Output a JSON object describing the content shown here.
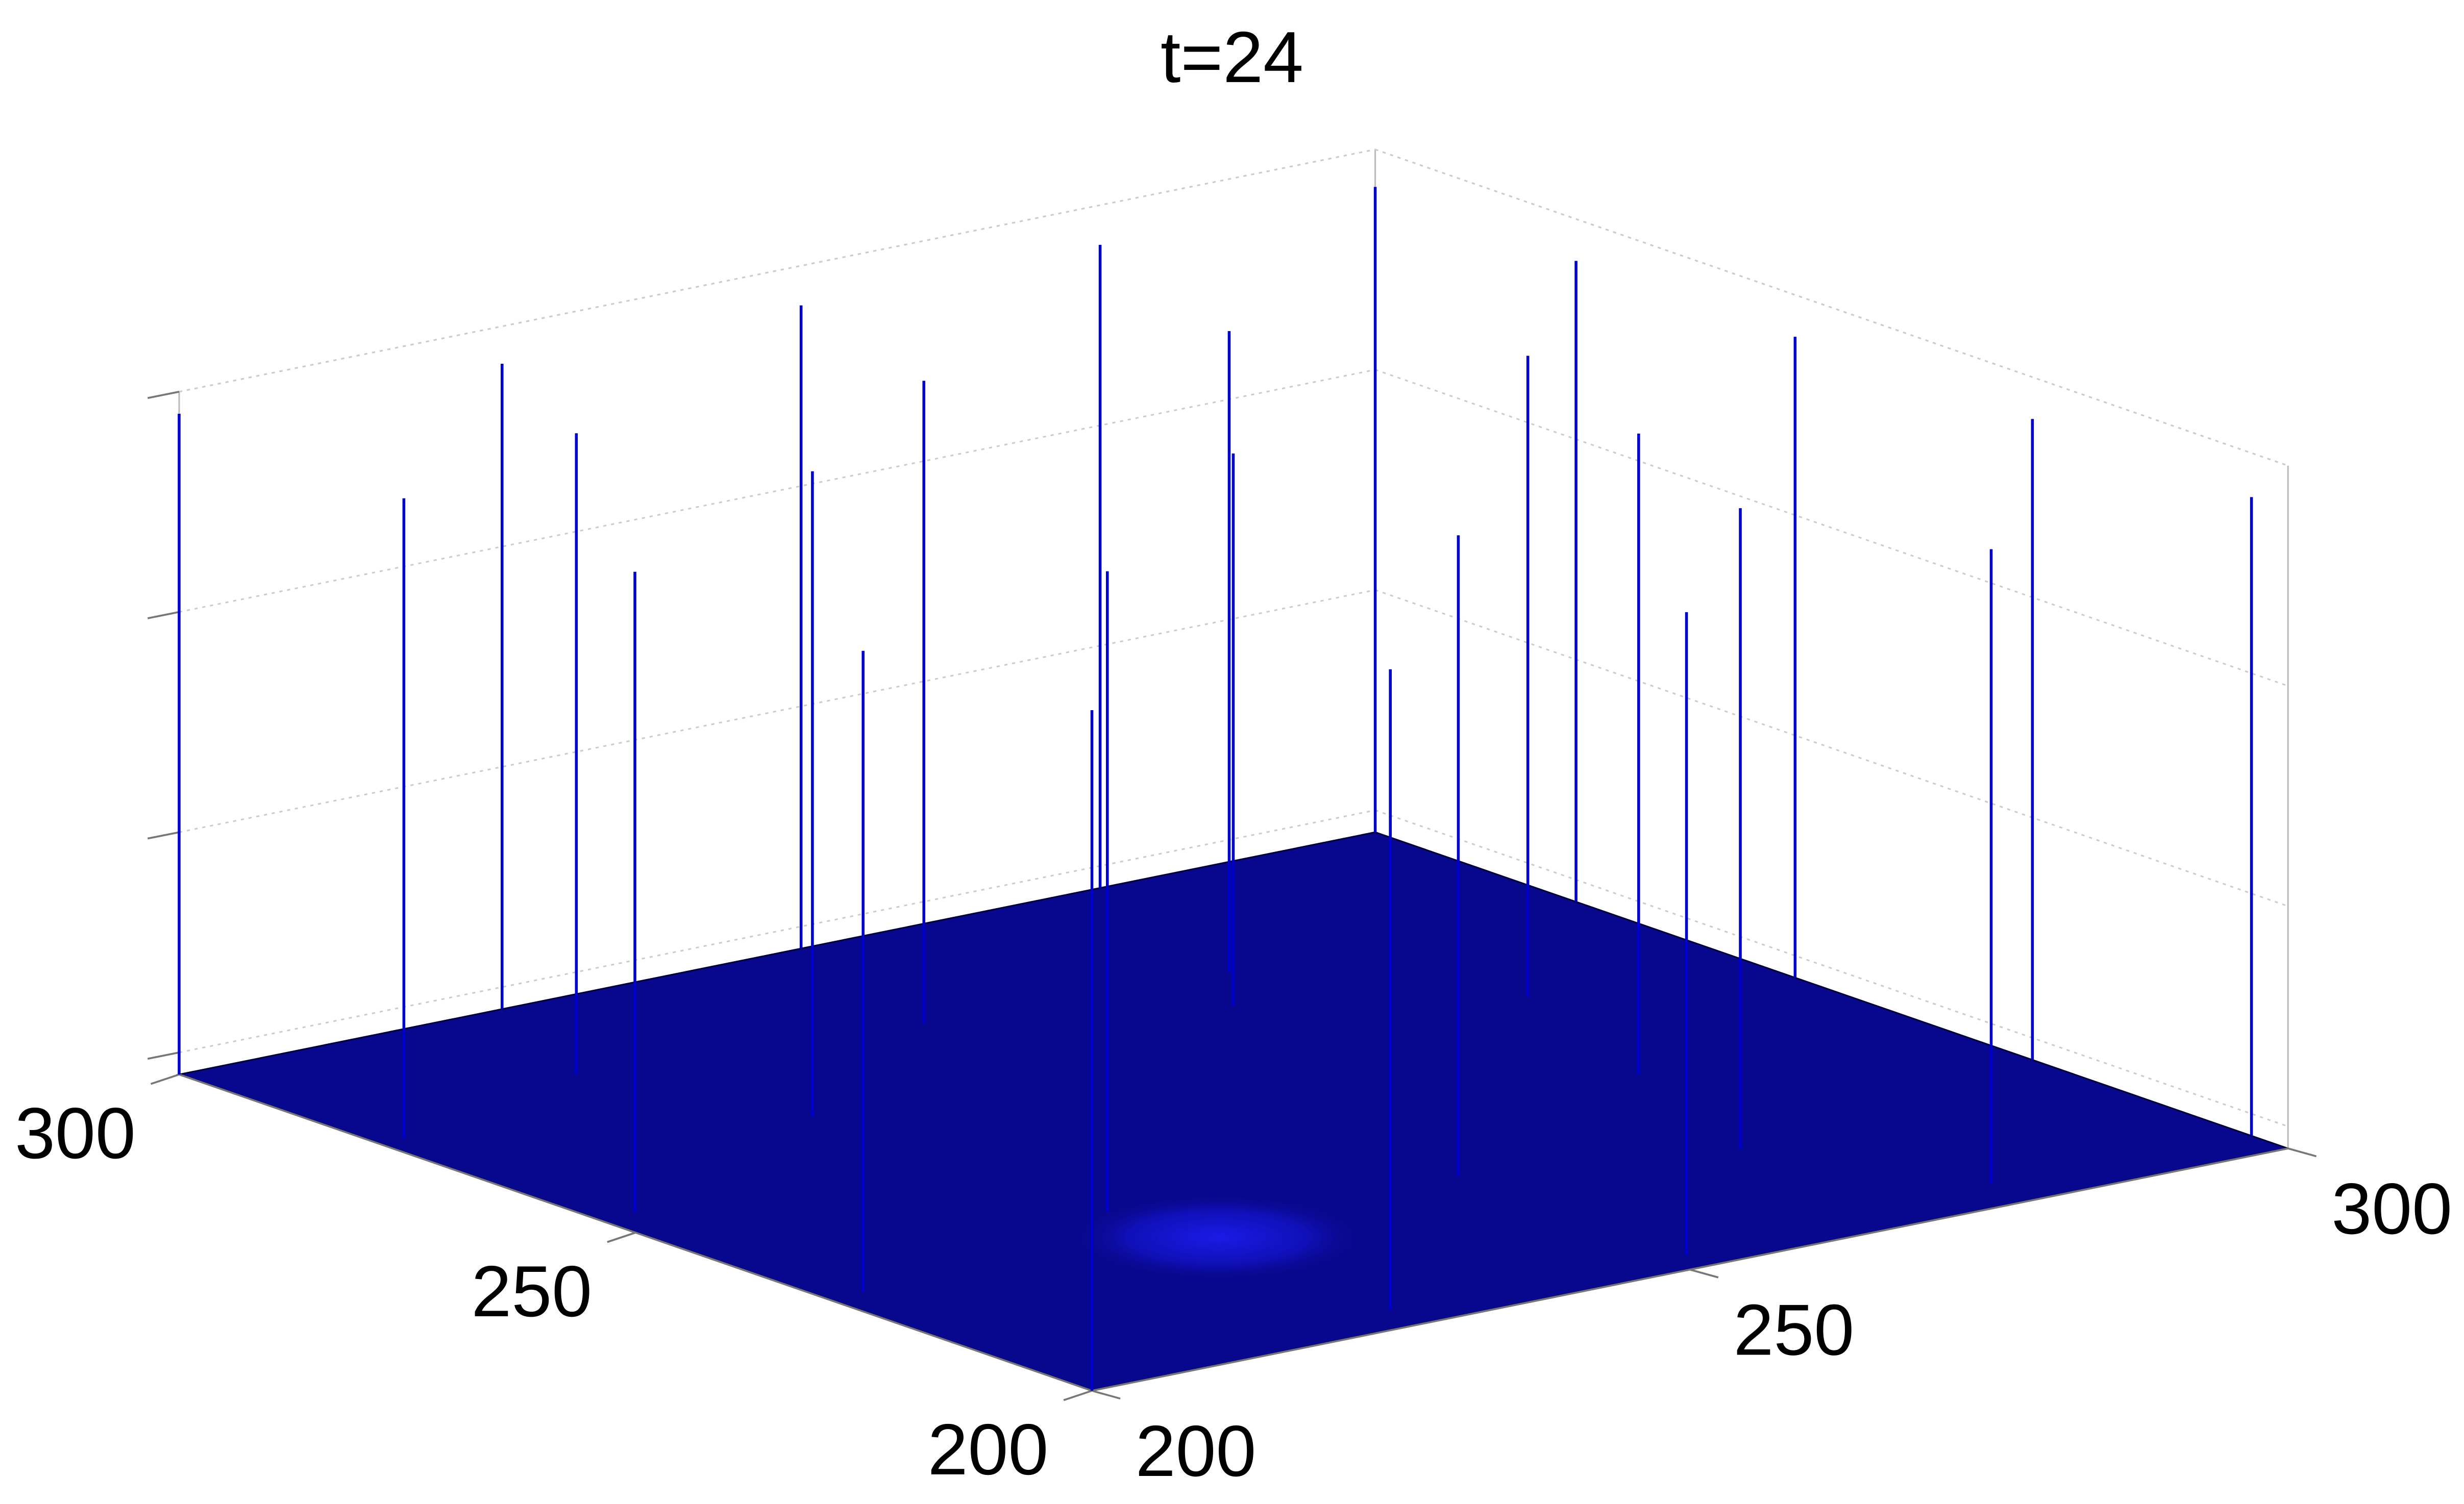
{
  "chart_data": {
    "type": "stem3",
    "title": "t=24",
    "x": [
      200,
      202,
      227,
      221,
      203,
      252,
      227,
      203,
      247,
      277,
      200,
      228,
      271,
      266,
      300,
      228,
      252,
      283,
      300,
      277,
      252,
      271,
      300,
      279,
      300,
      300
    ],
    "y": [
      300,
      278,
      300,
      284,
      254,
      300,
      266,
      229,
      280,
      300,
      200,
      235,
      278,
      271,
      300,
      204,
      228,
      261,
      278,
      241,
      203,
      222,
      254,
      205,
      228,
      204
    ],
    "z": [
      2.9,
      2.81,
      2.83,
      2.81,
      2.81,
      2.82,
      2.83,
      2.81,
      2.82,
      2.82,
      2.99,
      2.81,
      2.81,
      2.41,
      2.83,
      2.81,
      2.81,
      2.81,
      2.81,
      2.81,
      2.82,
      2.81,
      2.81,
      2.78,
      2.81,
      2.8
    ],
    "color": "#0000cc",
    "surface_color": "#08088e",
    "xlim": [
      200,
      300
    ],
    "ylim": [
      200,
      300
    ],
    "zlim": [
      -0.1,
      3
    ],
    "xticks": [
      200,
      250,
      300
    ],
    "yticks": [
      200,
      250,
      300
    ],
    "zticks": [
      0,
      1,
      2,
      3
    ],
    "grid": true
  }
}
